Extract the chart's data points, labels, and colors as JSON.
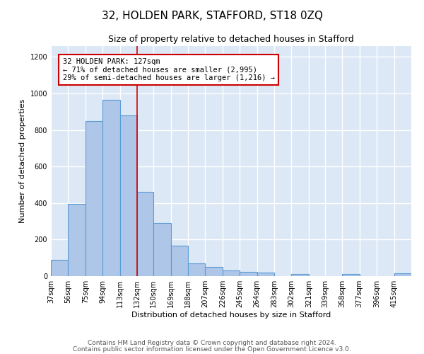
{
  "title": "32, HOLDEN PARK, STAFFORD, ST18 0ZQ",
  "subtitle": "Size of property relative to detached houses in Stafford",
  "xlabel": "Distribution of detached houses by size in Stafford",
  "ylabel": "Number of detached properties",
  "categories": [
    "37sqm",
    "56sqm",
    "75sqm",
    "94sqm",
    "113sqm",
    "132sqm",
    "150sqm",
    "169sqm",
    "188sqm",
    "207sqm",
    "226sqm",
    "245sqm",
    "264sqm",
    "283sqm",
    "302sqm",
    "321sqm",
    "339sqm",
    "358sqm",
    "377sqm",
    "396sqm",
    "415sqm"
  ],
  "bin_edges": [
    37,
    56,
    75,
    94,
    113,
    132,
    150,
    169,
    188,
    207,
    226,
    245,
    264,
    283,
    302,
    321,
    339,
    358,
    377,
    396,
    415,
    434
  ],
  "values": [
    90,
    395,
    850,
    965,
    880,
    460,
    290,
    165,
    70,
    50,
    30,
    25,
    20,
    0,
    10,
    0,
    0,
    10,
    0,
    0,
    15
  ],
  "bar_color": "#aec6e8",
  "bar_edge_color": "#5b9bd5",
  "bar_edge_width": 0.8,
  "vline_x": 132,
  "vline_color": "#cc0000",
  "annotation_text": "32 HOLDEN PARK: 127sqm\n← 71% of detached houses are smaller (2,995)\n29% of semi-detached houses are larger (1,216) →",
  "annotation_box_color": "#ffffff",
  "annotation_border_color": "#cc0000",
  "ylim": [
    0,
    1260
  ],
  "yticks": [
    0,
    200,
    400,
    600,
    800,
    1000,
    1200
  ],
  "background_color": "#dce8f5",
  "grid_color": "#ffffff",
  "fig_background": "#ffffff",
  "footer_line1": "Contains HM Land Registry data © Crown copyright and database right 2024.",
  "footer_line2": "Contains public sector information licensed under the Open Government Licence v3.0.",
  "title_fontsize": 11,
  "subtitle_fontsize": 9,
  "axis_label_fontsize": 8,
  "tick_fontsize": 7,
  "annotation_fontsize": 7.5,
  "footer_fontsize": 6.5
}
